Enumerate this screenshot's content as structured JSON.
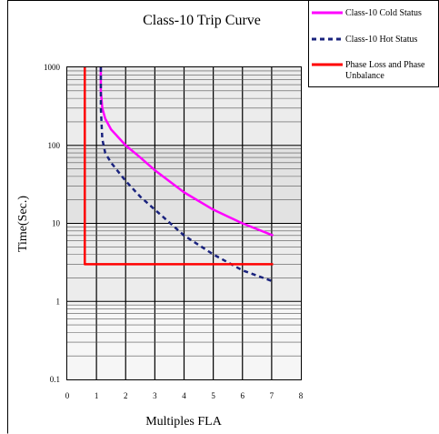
{
  "chart_data": {
    "type": "line",
    "title": "Class-10 Trip Curve",
    "xlabel": "Multiples FLA",
    "ylabel": "Time(Sec.)",
    "xlim": [
      0,
      8
    ],
    "ylim": [
      0.1,
      1000
    ],
    "yscale": "log",
    "x_ticks": [
      "0",
      "1",
      "2",
      "3",
      "4",
      "5",
      "6",
      "7",
      "8"
    ],
    "y_ticks": [
      "1000",
      "100",
      "10",
      "1",
      "0.1"
    ],
    "grid": true,
    "legend_position": "top-right",
    "series": [
      {
        "name": "Class-10 Cold Status",
        "color": "#ff00ff",
        "style": "solid",
        "x": [
          1.15,
          1.15,
          1.2,
          1.3,
          1.5,
          2,
          2.5,
          3,
          4,
          5,
          6,
          7.05
        ],
        "y": [
          1000,
          500,
          300,
          220,
          160,
          100,
          70,
          48,
          25,
          15,
          10,
          7
        ]
      },
      {
        "name": "Class-10 Hot Status",
        "color": "#1a237e",
        "style": "dashed",
        "x": [
          1.15,
          1.15,
          1.2,
          1.3,
          1.5,
          2,
          2.5,
          3,
          4,
          5,
          6,
          7.05
        ],
        "y": [
          1000,
          300,
          120,
          80,
          60,
          35,
          22,
          15,
          7,
          4,
          2.5,
          1.8
        ]
      },
      {
        "name": "Phase Loss and Phase Unbalance",
        "color": "#ff0000",
        "style": "solid",
        "x": [
          0.6,
          0.6,
          7.05
        ],
        "y": [
          1000,
          3,
          3
        ]
      }
    ]
  }
}
